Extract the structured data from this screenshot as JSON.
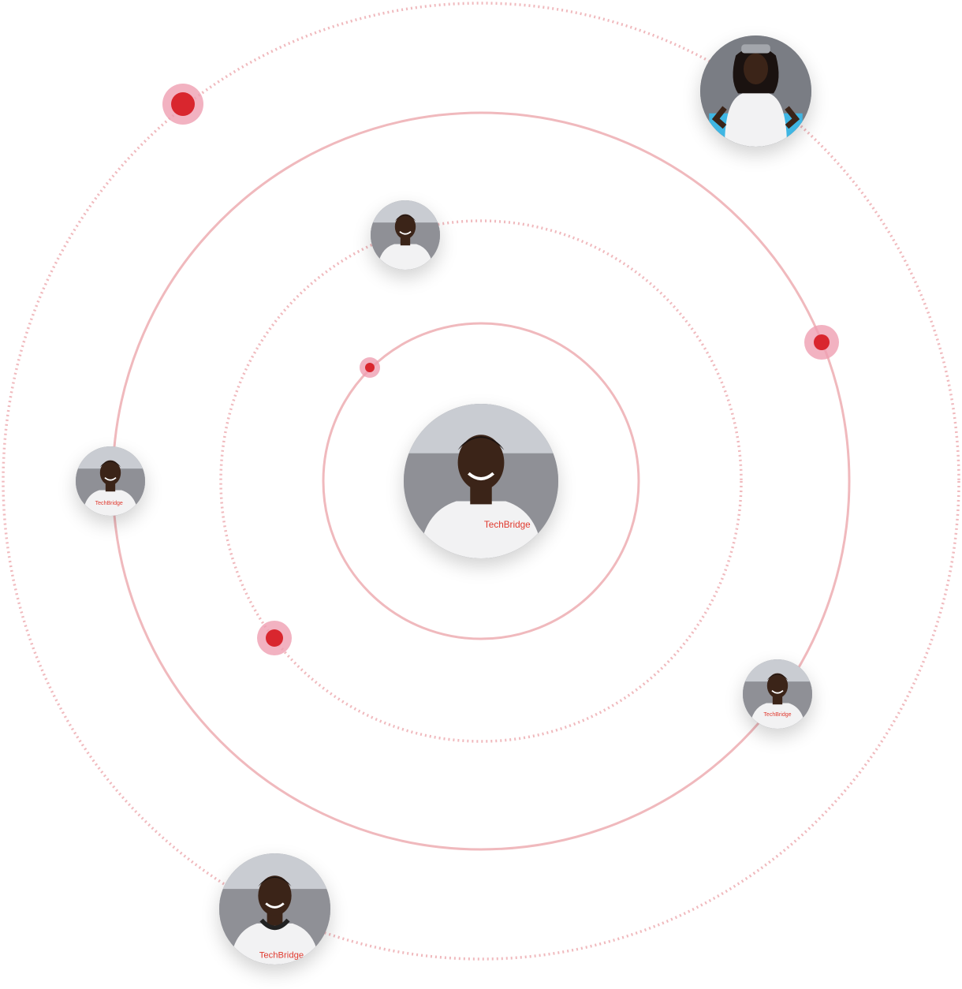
{
  "colors": {
    "orbit": "#f0b9bd",
    "dot": "#d9262e",
    "dot_halo": "#ef9fb1",
    "photo_wall": "#8f9096",
    "photo_sky": "#c9ccd2",
    "skin": "#3b2418",
    "shirt": "#f2f2f3"
  },
  "orbits": [
    {
      "id": "inner",
      "style": "solid"
    },
    {
      "id": "second",
      "style": "dotted"
    },
    {
      "id": "third",
      "style": "solid"
    },
    {
      "id": "outer",
      "style": "dotted"
    }
  ],
  "avatars": [
    {
      "id": "center",
      "shirt_text": "TechBridge"
    },
    {
      "id": "top-right-woman",
      "shirt_text": ""
    },
    {
      "id": "top-middle-man",
      "shirt_text": ""
    },
    {
      "id": "left-man",
      "shirt_text": "TechBridge"
    },
    {
      "id": "right-man",
      "shirt_text": "TechBridge"
    },
    {
      "id": "bottom-man",
      "shirt_text": "TechBridge"
    }
  ]
}
